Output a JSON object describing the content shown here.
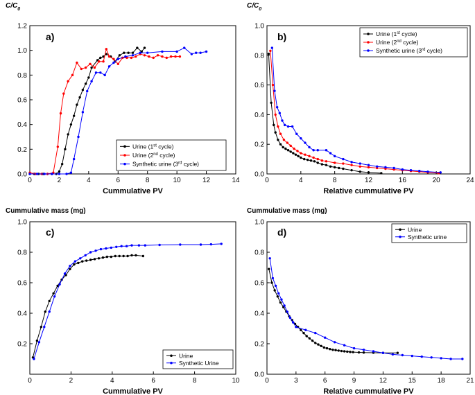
{
  "chart_data": [
    {
      "type": "line",
      "panel_label": "a)",
      "ylabel": "C/C0",
      "ylabel_parts": [
        "C/C",
        "0"
      ],
      "xlabel": "Cummulative PV",
      "xlim": [
        0,
        14
      ],
      "ylim": [
        0,
        1.2
      ],
      "xticks": [
        0,
        2,
        4,
        6,
        8,
        10,
        12,
        14
      ],
      "yticks": [
        0.0,
        0.2,
        0.4,
        0.6,
        0.8,
        1.0,
        1.2
      ],
      "xtick_labels": [
        "0",
        "2",
        "4",
        "6",
        "8",
        "10",
        "12",
        "14"
      ],
      "ytick_labels": [
        "0.0",
        "0.2",
        "0.4",
        "0.6",
        "0.8",
        "1.0",
        "1.2"
      ],
      "grid": false,
      "legend_position": "bottom-right",
      "series": [
        {
          "label_parts": [
            "Urine (1",
            "st",
            " cycle)"
          ],
          "color": "#000000",
          "marker": "dot",
          "x": [
            0,
            0.3,
            0.6,
            0.9,
            1.2,
            1.5,
            1.8,
            2.0,
            2.2,
            2.4,
            2.6,
            2.8,
            3.0,
            3.2,
            3.4,
            3.6,
            3.8,
            4.0,
            4.2,
            4.6,
            4.8,
            5.0,
            5.2,
            5.5,
            5.8,
            6.1,
            6.4,
            6.7,
            7.0,
            7.3,
            7.6,
            7.8
          ],
          "y": [
            0,
            0,
            0,
            0,
            0,
            0,
            0,
            0.02,
            0.08,
            0.2,
            0.32,
            0.4,
            0.47,
            0.56,
            0.62,
            0.68,
            0.73,
            0.78,
            0.86,
            0.92,
            0.94,
            0.95,
            0.97,
            0.95,
            0.91,
            0.96,
            0.98,
            0.98,
            0.98,
            1.02,
            0.99,
            1.02
          ]
        },
        {
          "label_parts": [
            "Urine (2",
            "nd",
            " cycle)"
          ],
          "color": "#ff0000",
          "marker": "dot",
          "x": [
            0,
            0.4,
            0.8,
            1.2,
            1.6,
            1.9,
            2.1,
            2.3,
            2.6,
            2.9,
            3.2,
            3.5,
            3.8,
            4.1,
            4.4,
            4.7,
            5.0,
            5.2,
            5.4,
            5.7,
            6.0,
            6.3,
            6.6,
            6.9,
            7.2,
            7.5,
            7.8,
            8.1,
            8.4,
            8.7,
            9.0,
            9.3,
            9.6,
            9.9,
            10.2
          ],
          "y": [
            0.01,
            0,
            0,
            0,
            0.01,
            0.22,
            0.49,
            0.65,
            0.75,
            0.8,
            0.9,
            0.85,
            0.86,
            0.89,
            0.86,
            0.91,
            0.91,
            1.01,
            0.95,
            0.93,
            0.89,
            0.94,
            0.94,
            0.94,
            0.95,
            0.97,
            0.96,
            0.95,
            0.94,
            0.96,
            0.95,
            0.94,
            0.95,
            0.95,
            0.95
          ]
        },
        {
          "label_parts": [
            "Synthetic urine (3",
            "rd",
            " cycle)"
          ],
          "color": "#0000ff",
          "marker": "dot",
          "x": [
            0,
            0.5,
            1.0,
            1.5,
            2.0,
            2.5,
            2.8,
            3.0,
            3.3,
            3.6,
            3.9,
            4.2,
            4.5,
            4.8,
            5.1,
            5.4,
            5.7,
            6.0,
            6.5,
            7.0,
            7.5,
            8.0,
            9.0,
            10.0,
            10.5,
            11.0,
            11.3,
            11.6,
            12.0
          ],
          "y": [
            0,
            0,
            0,
            0,
            0,
            0,
            0.01,
            0.12,
            0.3,
            0.5,
            0.67,
            0.75,
            0.82,
            0.82,
            0.8,
            0.87,
            0.9,
            0.93,
            0.95,
            0.96,
            0.98,
            0.98,
            0.99,
            0.99,
            1.02,
            0.97,
            0.98,
            0.98,
            0.99
          ]
        }
      ]
    },
    {
      "type": "line",
      "panel_label": "b)",
      "ylabel": "C/C0",
      "ylabel_parts": [
        "C/C",
        "0"
      ],
      "xlabel": "Relative cummulative PV",
      "xlim": [
        0,
        24
      ],
      "ylim": [
        0,
        1.0
      ],
      "xticks": [
        0,
        4,
        8,
        12,
        16,
        20,
        24
      ],
      "yticks": [
        0.0,
        0.2,
        0.4,
        0.6,
        0.8,
        1.0
      ],
      "xtick_labels": [
        "0",
        "4",
        "8",
        "12",
        "16",
        "20",
        "24"
      ],
      "ytick_labels": [
        "0.0",
        "0.2",
        "0.4",
        "0.6",
        "0.8",
        "1.0"
      ],
      "grid": false,
      "legend_position": "top-right",
      "series": [
        {
          "label_parts": [
            "Urine (1",
            "st",
            " cycle)"
          ],
          "color": "#000000",
          "marker": "dot",
          "x": [
            0.2,
            0.5,
            0.8,
            1.0,
            1.3,
            1.6,
            1.9,
            2.2,
            2.5,
            2.8,
            3.1,
            3.4,
            3.7,
            4.0,
            4.4,
            4.8,
            5.2,
            5.6,
            6.0,
            6.5,
            7.0,
            7.5,
            8.0,
            8.5,
            9.0,
            10.0,
            11.0,
            12.0,
            13.5
          ],
          "y": [
            0.81,
            0.48,
            0.33,
            0.28,
            0.23,
            0.2,
            0.18,
            0.17,
            0.16,
            0.15,
            0.14,
            0.13,
            0.12,
            0.11,
            0.1,
            0.095,
            0.09,
            0.085,
            0.075,
            0.065,
            0.06,
            0.05,
            0.045,
            0.04,
            0.035,
            0.025,
            0.015,
            0.01,
            0.005
          ]
        },
        {
          "label_parts": [
            "Urine (2",
            "nd",
            " cycle)"
          ],
          "color": "#ff0000",
          "marker": "dot",
          "x": [
            0.4,
            0.7,
            1.0,
            1.3,
            1.6,
            2.0,
            2.4,
            2.8,
            3.2,
            3.6,
            4.0,
            4.5,
            5.0,
            5.5,
            6.0,
            6.5,
            7.0,
            8.0,
            9.0,
            10.0,
            11.0,
            12.0,
            13.0,
            14.0,
            15.0,
            16.0,
            17.0,
            18.0,
            19.0,
            20.3
          ],
          "y": [
            0.83,
            0.6,
            0.4,
            0.32,
            0.27,
            0.23,
            0.21,
            0.19,
            0.17,
            0.155,
            0.14,
            0.13,
            0.12,
            0.11,
            0.1,
            0.09,
            0.085,
            0.075,
            0.07,
            0.06,
            0.05,
            0.045,
            0.04,
            0.035,
            0.03,
            0.025,
            0.02,
            0.015,
            0.01,
            0.005
          ]
        },
        {
          "label_parts": [
            "Synthetic urine (3",
            "rd",
            " cycle)"
          ],
          "color": "#0000ff",
          "marker": "dot",
          "x": [
            0.6,
            0.9,
            1.2,
            1.5,
            1.8,
            2.1,
            2.5,
            3.0,
            3.5,
            4.0,
            4.5,
            5.0,
            5.5,
            6.0,
            7.0,
            7.5,
            8.0,
            9.0,
            10.0,
            11.0,
            12.0,
            13.0,
            14.0,
            15.0,
            16.0,
            17.0,
            18.0,
            19.0,
            20.5
          ],
          "y": [
            0.85,
            0.56,
            0.45,
            0.41,
            0.36,
            0.33,
            0.32,
            0.32,
            0.27,
            0.24,
            0.21,
            0.18,
            0.16,
            0.16,
            0.16,
            0.14,
            0.12,
            0.1,
            0.08,
            0.07,
            0.06,
            0.05,
            0.045,
            0.04,
            0.03,
            0.025,
            0.02,
            0.015,
            0.01
          ]
        }
      ]
    },
    {
      "type": "line",
      "panel_label": "c)",
      "ylabel": "Cummulative mass (mg)",
      "xlabel": "Cummulative PV",
      "xlim": [
        0,
        10
      ],
      "ylim": [
        0,
        1.0
      ],
      "xticks": [
        0,
        2,
        4,
        6,
        8,
        10
      ],
      "yticks": [
        0.2,
        0.4,
        0.6,
        0.8,
        1.0
      ],
      "xtick_labels": [
        "0",
        "2",
        "4",
        "6",
        "8",
        "10"
      ],
      "ytick_labels": [
        "0.2",
        "0.4",
        "0.6",
        "0.8",
        "1.0"
      ],
      "grid": false,
      "legend_position": "bottom-right",
      "series": [
        {
          "label_parts": [
            "Urine"
          ],
          "color": "#000000",
          "marker": "dot",
          "x": [
            0.15,
            0.35,
            0.55,
            0.75,
            0.95,
            1.15,
            1.35,
            1.55,
            1.75,
            1.95,
            2.15,
            2.35,
            2.55,
            2.75,
            2.95,
            3.15,
            3.35,
            3.55,
            3.75,
            3.95,
            4.15,
            4.35,
            4.55,
            4.75,
            4.95,
            5.15,
            5.5
          ],
          "y": [
            0.11,
            0.22,
            0.31,
            0.41,
            0.48,
            0.53,
            0.58,
            0.62,
            0.65,
            0.69,
            0.72,
            0.73,
            0.74,
            0.745,
            0.75,
            0.755,
            0.76,
            0.765,
            0.77,
            0.77,
            0.775,
            0.775,
            0.775,
            0.775,
            0.78,
            0.78,
            0.775
          ]
        },
        {
          "label_parts": [
            "Synthetic Urine"
          ],
          "color": "#0000ff",
          "marker": "dot",
          "x": [
            0.2,
            0.45,
            0.7,
            0.95,
            1.2,
            1.45,
            1.7,
            1.95,
            2.2,
            2.45,
            2.7,
            2.95,
            3.2,
            3.45,
            3.7,
            3.95,
            4.2,
            4.45,
            4.7,
            4.95,
            5.3,
            5.6,
            6.3,
            7.3,
            8.3,
            8.8,
            9.3
          ],
          "y": [
            0.1,
            0.21,
            0.31,
            0.41,
            0.51,
            0.59,
            0.66,
            0.71,
            0.74,
            0.76,
            0.78,
            0.8,
            0.81,
            0.82,
            0.825,
            0.83,
            0.835,
            0.84,
            0.84,
            0.845,
            0.845,
            0.845,
            0.848,
            0.85,
            0.85,
            0.852,
            0.855
          ]
        }
      ]
    },
    {
      "type": "line",
      "panel_label": "d)",
      "ylabel": "Cummulative mass (mg)",
      "xlabel": "Relative cummulative PV",
      "xlim": [
        0,
        21
      ],
      "ylim": [
        0,
        1.0
      ],
      "xticks": [
        0,
        3,
        6,
        9,
        12,
        15,
        18,
        21
      ],
      "yticks": [
        0.0,
        0.2,
        0.4,
        0.6,
        0.8,
        1.0
      ],
      "xtick_labels": [
        "0",
        "3",
        "6",
        "9",
        "12",
        "15",
        "18",
        "21"
      ],
      "ytick_labels": [
        "0.0",
        "0.2",
        "0.4",
        "0.6",
        "0.8",
        "1.0"
      ],
      "grid": false,
      "legend_position": "top-right",
      "series": [
        {
          "label_parts": [
            "Urine"
          ],
          "color": "#000000",
          "marker": "dot",
          "x": [
            0.2,
            0.5,
            0.8,
            1.1,
            1.4,
            1.7,
            2.0,
            2.3,
            2.6,
            2.9,
            3.2,
            3.5,
            3.8,
            4.1,
            4.4,
            4.7,
            5.0,
            5.3,
            5.6,
            5.9,
            6.2,
            6.5,
            6.8,
            7.1,
            7.4,
            7.7,
            8.0,
            8.3,
            8.6,
            8.9,
            9.5,
            10.0,
            11.0,
            12.0,
            13.5
          ],
          "y": [
            0.69,
            0.6,
            0.55,
            0.51,
            0.47,
            0.44,
            0.41,
            0.38,
            0.355,
            0.33,
            0.31,
            0.29,
            0.27,
            0.25,
            0.235,
            0.22,
            0.205,
            0.195,
            0.185,
            0.175,
            0.17,
            0.165,
            0.16,
            0.158,
            0.155,
            0.152,
            0.15,
            0.148,
            0.146,
            0.145,
            0.143,
            0.142,
            0.141,
            0.14,
            0.14
          ]
        },
        {
          "label_parts": [
            "Synthetic urine"
          ],
          "color": "#0000ff",
          "marker": "dot",
          "x": [
            0.3,
            0.6,
            0.9,
            1.2,
            1.5,
            1.8,
            2.1,
            2.4,
            2.7,
            3.0,
            4.0,
            5.0,
            6.0,
            7.0,
            8.0,
            9.0,
            10.0,
            11.0,
            12.0,
            13.0,
            14.0,
            15.0,
            16.0,
            17.0,
            18.0,
            19.0,
            20.2
          ],
          "y": [
            0.76,
            0.63,
            0.58,
            0.53,
            0.49,
            0.45,
            0.41,
            0.37,
            0.34,
            0.31,
            0.29,
            0.27,
            0.24,
            0.21,
            0.19,
            0.17,
            0.16,
            0.15,
            0.14,
            0.13,
            0.125,
            0.12,
            0.115,
            0.11,
            0.105,
            0.1,
            0.1
          ]
        }
      ]
    }
  ]
}
